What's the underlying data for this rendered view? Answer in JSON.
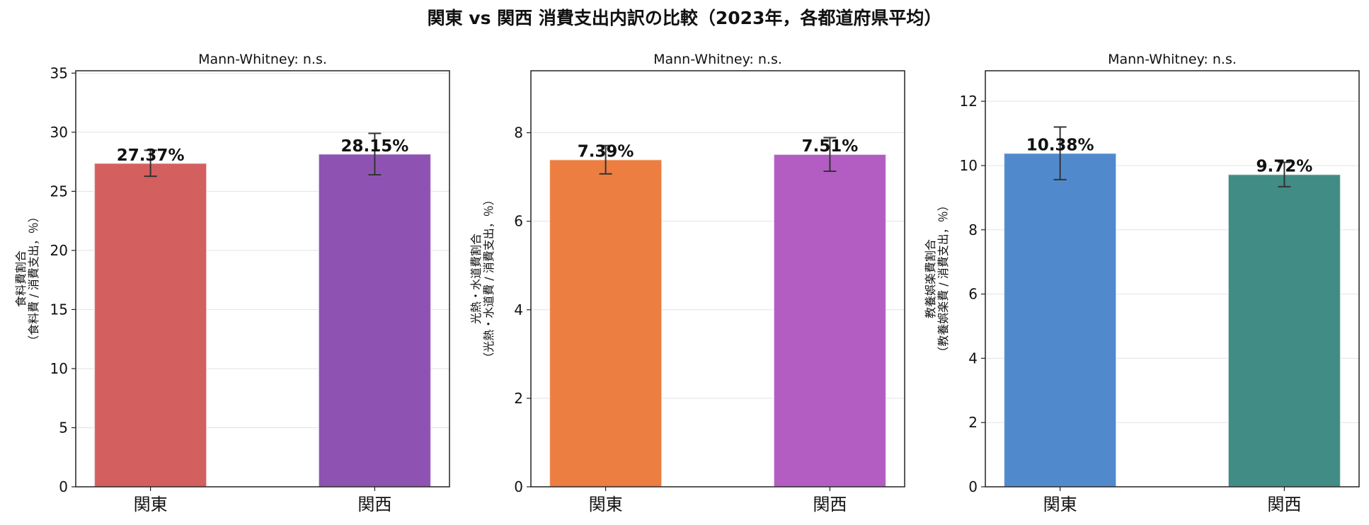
{
  "figure": {
    "title": "関東 vs 関西 消費支出内訳の比較（2023年，各都道府県平均）"
  },
  "chart_data": [
    {
      "type": "bar",
      "title": "Mann-Whitney: n.s.",
      "ylabel_line1": "食料費割合",
      "ylabel_line2": "（食料費 / 消費支出，％）",
      "categories": [
        "関東",
        "関西"
      ],
      "values": [
        27.37,
        28.15
      ],
      "errors": [
        1.1,
        1.75
      ],
      "data_labels": [
        "27.37%",
        "28.15%"
      ],
      "colors": [
        "#d45f5f",
        "#8e53b2"
      ],
      "ylim": [
        0,
        35.2
      ],
      "yticks": [
        0,
        5,
        10,
        15,
        20,
        25,
        30,
        35
      ],
      "grid": true
    },
    {
      "type": "bar",
      "title": "Mann-Whitney: n.s.",
      "ylabel_line1": "光熱・水道費割合",
      "ylabel_line2": "（光熱・水道費 / 消費支出，％）",
      "categories": [
        "関東",
        "関西"
      ],
      "values": [
        7.39,
        7.51
      ],
      "errors": [
        0.32,
        0.38
      ],
      "data_labels": [
        "7.39%",
        "7.51%"
      ],
      "colors": [
        "#ec7e41",
        "#b35dc3"
      ],
      "ylim": [
        0,
        9.4
      ],
      "yticks": [
        0,
        2,
        4,
        6,
        8
      ],
      "grid": true
    },
    {
      "type": "bar",
      "title": "Mann-Whitney: n.s.",
      "ylabel_line1": "教養娯楽費割合",
      "ylabel_line2": "（教養娯楽費 / 消費支出，％）",
      "categories": [
        "関東",
        "関西"
      ],
      "values": [
        10.38,
        9.72
      ],
      "errors": [
        0.82,
        0.38
      ],
      "data_labels": [
        "10.38%",
        "9.72%"
      ],
      "colors": [
        "#508acd",
        "#418c85"
      ],
      "ylim": [
        0,
        12.95
      ],
      "yticks": [
        0,
        2,
        4,
        6,
        8,
        10,
        12
      ],
      "grid": true
    }
  ]
}
